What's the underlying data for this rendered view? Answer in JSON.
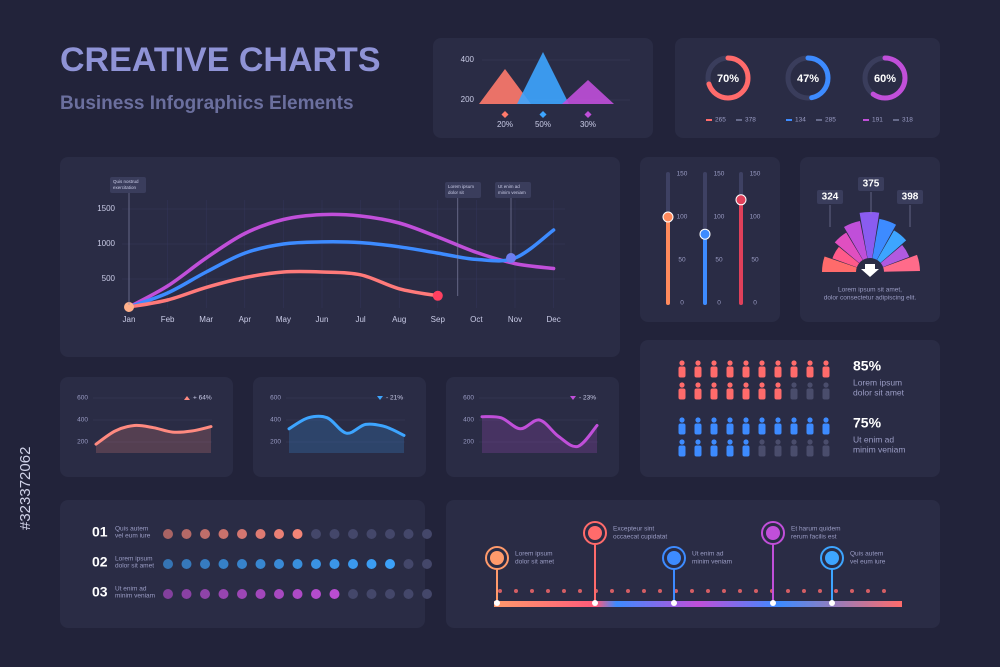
{
  "header": {
    "title": "CREATIVE CHARTS",
    "subtitle": "Business Infographics Elements"
  },
  "watermark_id": "#323372062",
  "mountain": {
    "ylim": [
      180,
      440
    ],
    "yticks": [
      200,
      400
    ],
    "peaks": [
      355,
      440,
      300
    ],
    "labels": [
      "20%",
      "50%",
      "30%"
    ]
  },
  "donuts": [
    {
      "value": 70,
      "label": "70%",
      "legend": [
        265,
        378
      ],
      "color": "#ff6b6b"
    },
    {
      "value": 47,
      "label": "47%",
      "legend": [
        134,
        285
      ],
      "color": "#3d8bff"
    },
    {
      "value": 60,
      "label": "60%",
      "legend": [
        191,
        318
      ],
      "color": "#c04fd9"
    }
  ],
  "line_chart": {
    "categories": [
      "Jan",
      "Feb",
      "Mar",
      "Apr",
      "May",
      "Jun",
      "Jul",
      "Aug",
      "Sep",
      "Oct",
      "Nov",
      "Dec"
    ],
    "ylim": [
      100,
      1600
    ],
    "yticks": [
      500,
      1000,
      1500
    ],
    "series": [
      {
        "color": "#c04fd9",
        "values": [
          100,
          400,
          800,
          1150,
          1350,
          1420,
          1400,
          1300,
          1100,
          880,
          720,
          650
        ]
      },
      {
        "color": "#3d8bff",
        "values": [
          100,
          300,
          600,
          870,
          1000,
          1030,
          1020,
          960,
          870,
          780,
          800,
          1200
        ]
      },
      {
        "color": "#ff7a7a",
        "values": [
          100,
          200,
          380,
          520,
          600,
          600,
          560,
          360,
          260,
          null,
          null,
          null
        ]
      }
    ],
    "annotations": [
      [
        "Quis nostrud",
        "exercitation"
      ],
      [
        "Lorem ipsum",
        "dolor sit"
      ],
      [
        "Ut enim ad",
        "minim veniam"
      ]
    ]
  },
  "sliders": {
    "ylim": [
      0,
      150
    ],
    "ticks": [
      150,
      100,
      50,
      0
    ],
    "values": [
      100,
      80,
      120
    ],
    "colors": [
      "#ff8a5c",
      "#3d8bff",
      "#e0405a"
    ]
  },
  "fan": {
    "labels": [
      324,
      375,
      398
    ],
    "caption": [
      "Lorem ipsum sit amet,",
      "dolor consectetur adipiscing elit."
    ]
  },
  "area_charts": [
    {
      "ylim": [
        100,
        700
      ],
      "yticks": [
        200,
        400,
        600
      ],
      "change": "+ 64%",
      "color": "#ff8a80",
      "values": [
        180,
        300,
        350,
        330,
        290,
        300,
        340
      ]
    },
    {
      "ylim": [
        100,
        700
      ],
      "yticks": [
        200,
        400,
        600
      ],
      "change": "- 21%",
      "color": "#3da5ff",
      "values": [
        320,
        420,
        420,
        280,
        360,
        340,
        260
      ]
    },
    {
      "ylim": [
        100,
        700
      ],
      "yticks": [
        200,
        400,
        600
      ],
      "change": "- 23%",
      "color": "#c04fd9",
      "values": [
        430,
        420,
        320,
        400,
        250,
        160,
        350
      ]
    }
  ],
  "people": [
    {
      "value": 85,
      "label": "85%",
      "text": [
        "Lorem ipsum",
        "dolor sit amet"
      ],
      "color": "#ff6b6b"
    },
    {
      "value": 75,
      "label": "75%",
      "text": [
        "Ut enim ad",
        "minim veniam"
      ],
      "color": "#3d8bff"
    }
  ],
  "dot_total": 15,
  "dot_rows": [
    {
      "number": "01",
      "text": [
        "Quis autem",
        "vel eum iure"
      ],
      "filled": 8,
      "color": "#ff8a7a"
    },
    {
      "number": "02",
      "text": [
        "Lorem ipsum",
        "dolor sit amet"
      ],
      "filled": 13,
      "color": "#3da5ff"
    },
    {
      "number": "03",
      "text": [
        "Ut enim ad",
        "minim veniam"
      ],
      "filled": 10,
      "color": "#c04fd9"
    }
  ],
  "timeline": {
    "items": [
      [
        "Lorem ipsum",
        "dolor sit amet"
      ],
      [
        "Excepteur sint",
        "occaecat cupidatat"
      ],
      [
        "Ut enim ad",
        "minim veniam"
      ],
      [
        "Et harum quidem",
        "rerum facilis est"
      ],
      [
        "Quis autem",
        "vel eum iure"
      ]
    ]
  }
}
